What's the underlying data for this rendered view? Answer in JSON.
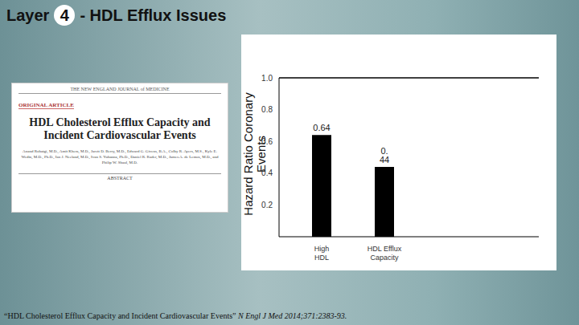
{
  "slide": {
    "title_prefix": "Layer",
    "layer_number": 4,
    "title_suffix": "- HDL Efflux Issues",
    "citation_title": "“HDL Cholesterol Efflux Capacity and Incident Cardiovascular Events”",
    "citation_source": "N Engl J Med 2014;371:2383-93.",
    "thumbnail": {
      "journal": "THE NEW ENGLAND JOURNAL of MEDICINE",
      "section": "ORIGINAL ARTICLE",
      "title": "HDL Cholesterol Efflux Capacity and Incident Cardiovascular Events",
      "authors": "Anand Rohatgi, M.D., Amit Khera, M.D., Jarett D. Berry, M.D., Edward G. Givens, B.A., Colby R. Ayers, M.S., Kyle E. Wedin, M.D., Ph.D., Ian J. Neeland, M.D., Ivan S. Yuhanna, Ph.D., Daniel R. Rader, M.D., James A. de Lemos, M.D., and Philip W. Shaul, M.D.",
      "footer": "ABSTRACT"
    }
  },
  "chart_data": {
    "type": "bar",
    "y_label": "Hazard Ratio Coronary Events",
    "categories": [
      "High HDL",
      "HDL Efflux Capacity"
    ],
    "values": [
      0.64,
      0.44
    ],
    "value_labels": [
      "0.64",
      "0. 44"
    ],
    "data_labels": true,
    "color": "#000000",
    "ylim": [
      0,
      1
    ],
    "yticks": [
      0.2,
      0.4,
      0.6,
      0.8,
      {
        "value": 1,
        "label": "1.0"
      }
    ],
    "reference_line": 1,
    "grid": false
  }
}
